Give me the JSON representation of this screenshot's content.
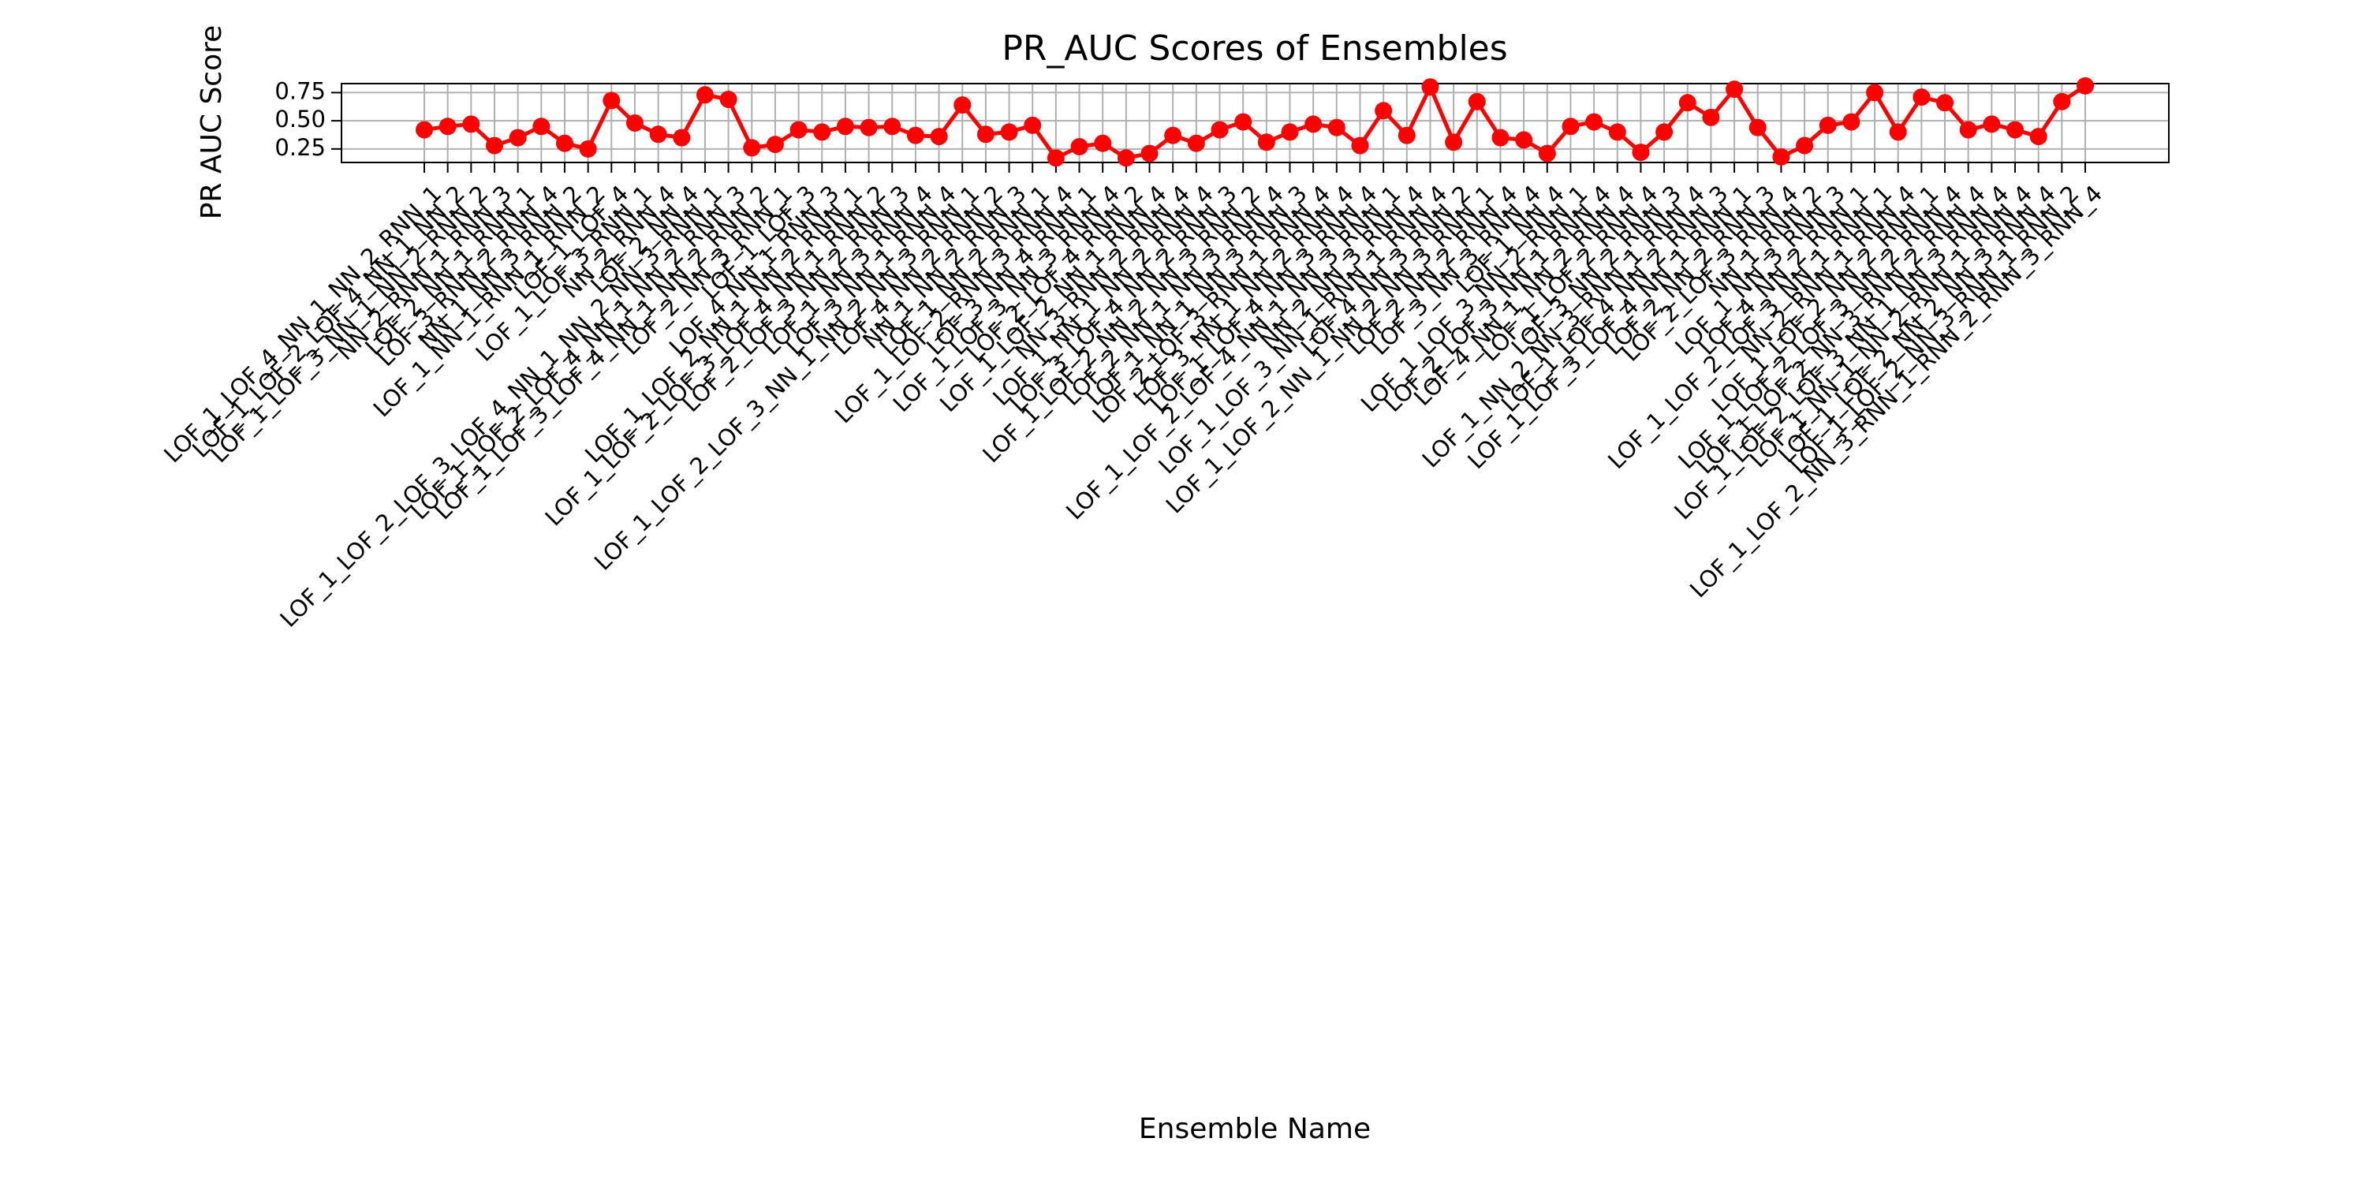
{
  "chart_data": {
    "type": "line",
    "title": "PR_AUC Scores of Ensembles",
    "x_label": "Ensemble Name",
    "y_label": "PR AUC Score",
    "color": "#ff0000",
    "grid": true,
    "ylim": [
      0.13,
      0.83
    ],
    "yticks": [
      0.25,
      {
        "value": 0.5,
        "label": "0.50"
      },
      0.75
    ],
    "categories": [
      "LOF_1_LOF_4_NN_1_NN_2_RNN_1",
      "LOF_1_LOF_2_LOF_4_NN_1_NN_2",
      "LOF_1_LOF_3_NN_1_NN_2_RNN_2",
      "NN_2_RNN_1_RNN_3",
      "LOF_2_NN_1_RNN_1",
      "LOF_3_RNN_2_RNN_4",
      "NN_1_NN_3_RNN_2",
      "LOF_1_NN_1_RNN_1_RNN_2",
      "LOF_1_LOF_4",
      "LOF_1_LOF_3_RNN_1",
      "NN_2_RNN_4",
      "LOF_2_NN_4",
      "LOF_1_LOF_2_LOF_3_LOF_4_NN_1_NN_2_NN_3_RNN_1",
      "LOF_1_LOF_2_LOF_4_NN_1_NN_2_RNN_3",
      "LOF_1_LOF_3_LOF_4_NN_1_NN_2_RNN_2",
      "LOF_2_NN_3_RNN_1",
      "LOF_1_LOF_3",
      "LOF_4_NN_1_RNN_3",
      "LOF_1_LOF_2_NN_1_NN_2_RNN_1",
      "LOF_1_LOF_2_LOF_3_LOF_4_NN_1_RNN_2",
      "LOF_2_LOF_3_NN_2_RNN_3",
      "LOF_1_NN_3_RNN_4",
      "LOF_3_NN_1_RNN_4",
      "LOF_1_LOF_2_LOF_3_NN_1_NN_2_NN_3_RNN_1",
      "LOF_4_NN_2_RNN_2",
      "NN_1_NN_2_RNN_3",
      "LOF_1_NN_2_RNN_1",
      "LOF_1_LOF_2_RNN_3_RNN_4",
      "LOF_3_NN_4_RNN_1",
      "LOF_1_LOF_3_NN_3_RNN_4",
      "LOF_2_LOF_4_RNN_2",
      "LOF_1_LOF_2_NN_1_RNN_4",
      "NN_3_RNN_2_RNN_4",
      "LOF_1_NN_1_NN_2_RNN_4",
      "LOF_3_LOF_4_NN_2_RNN_3",
      "LOF_1_LOF_2_NN_2_NN_3_RNN_2",
      "LOF_2_NN_1_NN_3_RNN_4",
      "LOF_1_NN_1_NN_3_RNN_3",
      "LOF_2_LOF_3_RNN_1_RNN_4",
      "LOF_3_NN_1_NN_2_RNN_4",
      "LOF_1_LOF_4_NN_3_RNN_4",
      "LOF_1_LOF_2_LOF_4_NN_1_NN_3_RNN_1",
      "NN_2_NN_3_RNN_4",
      "LOF_1_LOF_3_NN_1_RNN_1_RNN_4",
      "LOF_4_NN_3_RNN_2",
      "LOF_1_LOF_2_NN_1_NN_2_NN_3_RNN_1",
      "LOF_2_NN_2_RNN_4",
      "LOF_3_NN_3_RNN_4",
      "LOF_1_NN_4",
      "LOF_1_LOF_3_NN_2_RNN_1",
      "LOF_2_LOF_3_NN_1_RNN_4",
      "LOF_4_NN_1_NN_2_RNN_4",
      "LOF_1_LOF_2_RNN_4",
      "LOF_3_NN_2_RNN_3",
      "LOF_1_NN_2_NN_3_RNN_1_RNN_4",
      "LOF_1_LOF_4_NN_2_RNN_3",
      "LOF_1_LOF_3_LOF_4_NN_1_RNN_1",
      "LOF_2_NN_2_RNN_3",
      "LOF_2_LOF_3_RNN_4",
      "NN_1_RNN_2",
      "LOF_1_NN_3_RNN_3",
      "LOF_4_NN_2_RNN_1",
      "LOF_1_LOF_2_LOF_3_NN_1_RNN_1",
      "NN_2_RNN_1_RNN_4",
      "LOF_1_LOF_2_NN_2_RNN_1",
      "LOF_1_LOF_2_LOF_3_NN_2_RNN_4",
      "LOF_1_LOF_2_NN_3_RNN_2_RNN_4",
      "LOF_1_LOF_2_LOF_3_NN_1_NN_3_RNN_4",
      "LOF_1_NN_1_NN_2_RNN_1_RNN_4",
      "LOF_1_LOF_2_NN_2_NN_3_RNN_4",
      "LOF_1_LOF_2_NN_3_RNN_1_RNN_2",
      "LOF_1_LOF_2_NN_3_RNN_1_RNN_2_RNN_3_RNN_4"
    ],
    "values": [
      0.42,
      0.45,
      0.47,
      0.28,
      0.35,
      0.45,
      0.3,
      0.25,
      0.68,
      0.48,
      0.38,
      0.35,
      0.73,
      0.69,
      0.26,
      0.29,
      0.42,
      0.4,
      0.45,
      0.44,
      0.45,
      0.37,
      0.36,
      0.64,
      0.38,
      0.4,
      0.46,
      0.17,
      0.27,
      0.3,
      0.17,
      0.21,
      0.37,
      0.3,
      0.42,
      0.49,
      0.31,
      0.4,
      0.47,
      0.44,
      0.28,
      0.59,
      0.37,
      0.8,
      0.31,
      0.67,
      0.35,
      0.33,
      0.21,
      0.45,
      0.49,
      0.4,
      0.22,
      0.4,
      0.66,
      0.53,
      0.78,
      0.44,
      0.18,
      0.28,
      0.46,
      0.49,
      0.75,
      0.4,
      0.71,
      0.66,
      0.42,
      0.47,
      0.42,
      0.36,
      0.67,
      0.81
    ]
  }
}
